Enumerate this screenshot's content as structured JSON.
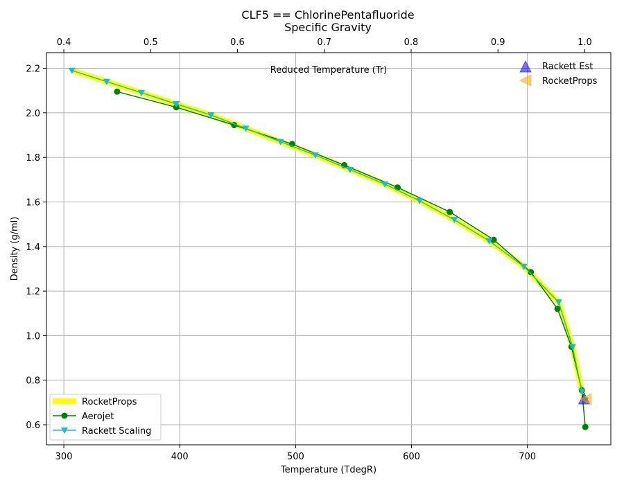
{
  "chart_data": {
    "type": "line",
    "title": "CLF5 == ChlorinePentafluoride",
    "subtitle": "Specific Gravity",
    "xlabel": "Temperature (TdegR)",
    "ylabel": "Density (g/ml)",
    "x2label": "Reduced Temperature (Tr)",
    "xlim": [
      285,
      772
    ],
    "ylim": [
      0.51,
      2.27
    ],
    "x2lim": [
      0.38,
      1.03
    ],
    "xticks": [
      "300",
      "400",
      "500",
      "600",
      "700"
    ],
    "yticks": [
      "0.6",
      "0.8",
      "1.0",
      "1.2",
      "1.4",
      "1.6",
      "1.8",
      "2.0",
      "2.2"
    ],
    "x2ticks": [
      "0.4",
      "0.5",
      "0.6",
      "0.7",
      "0.8",
      "0.9",
      "1.0"
    ],
    "grid": true,
    "legend_lower": {
      "placement": "lower-left",
      "entries": [
        "RocketProps",
        "Aerojet",
        "Rackett Scaling"
      ]
    },
    "legend_upper": {
      "placement": "upper-right",
      "entries": [
        "Rackett Est",
        "RocketProps"
      ]
    },
    "series": [
      {
        "name": "RocketProps",
        "style": "thick-line",
        "color": "#ffff00",
        "x": [
          307,
          337,
          367,
          397,
          427,
          457,
          487,
          517,
          547,
          577,
          607,
          637,
          667,
          697,
          727,
          739,
          747,
          750
        ],
        "y": [
          2.19,
          2.14,
          2.09,
          2.04,
          1.99,
          1.93,
          1.87,
          1.81,
          1.745,
          1.68,
          1.605,
          1.52,
          1.425,
          1.31,
          1.15,
          0.95,
          0.75,
          0.71
        ]
      },
      {
        "name": "Aerojet",
        "style": "line-circle",
        "color": "#008000",
        "x": [
          346,
          397,
          447,
          497,
          542,
          588,
          633,
          671,
          703,
          726,
          738,
          747,
          750
        ],
        "y": [
          2.095,
          2.025,
          1.945,
          1.86,
          1.765,
          1.665,
          1.555,
          1.43,
          1.285,
          1.12,
          0.95,
          0.755,
          0.59
        ]
      },
      {
        "name": "Rackett Scaling",
        "style": "line-triangle-down",
        "color": "#17becf",
        "x": [
          307,
          337,
          367,
          397,
          427,
          457,
          487,
          517,
          547,
          577,
          607,
          637,
          667,
          697,
          727,
          739,
          747,
          750
        ],
        "y": [
          2.19,
          2.14,
          2.09,
          2.04,
          1.99,
          1.93,
          1.87,
          1.81,
          1.745,
          1.68,
          1.605,
          1.52,
          1.425,
          1.31,
          1.15,
          0.95,
          0.75,
          0.71
        ]
      }
    ],
    "markers": [
      {
        "name": "Rackett Est",
        "shape": "triangle-up",
        "color": "#0000ff",
        "x": 749,
        "y": 0.715
      },
      {
        "name": "RocketProps",
        "shape": "triangle-left",
        "color": "#ffa500",
        "x": 751,
        "y": 0.715
      }
    ]
  }
}
